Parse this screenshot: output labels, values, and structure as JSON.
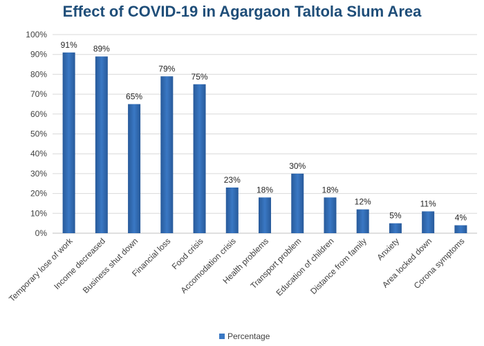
{
  "chart_data": {
    "type": "bar",
    "title": "Effect of COVID-19 in Agargaon Taltola Slum Area",
    "categories": [
      "Temporary lose of work",
      "Income decreased",
      "Business shut down",
      "Financial loss",
      "Food crisis",
      "Accomodation crisis",
      "Health problems",
      "Transport problem",
      "Education of children",
      "Distance from family",
      "Anxiety",
      "Area locked down",
      "Corona symptoms"
    ],
    "series": [
      {
        "name": "Percentage",
        "values": [
          91,
          89,
          65,
          79,
          75,
          23,
          18,
          30,
          18,
          12,
          5,
          11,
          4
        ],
        "labels": [
          "91%",
          "89%",
          "65%",
          "79%",
          "75%",
          "23%",
          "18%",
          "30%",
          "18%",
          "12%",
          "5%",
          "11%",
          "4%"
        ]
      }
    ],
    "yticks": [
      "0%",
      "10%",
      "20%",
      "30%",
      "40%",
      "50%",
      "60%",
      "70%",
      "80%",
      "90%",
      "100%"
    ],
    "ylim": [
      0,
      100
    ],
    "grid": true,
    "legend_position": "bottom",
    "bar_color": "#3a78c4",
    "bar_color_dark": "#285a9a"
  }
}
